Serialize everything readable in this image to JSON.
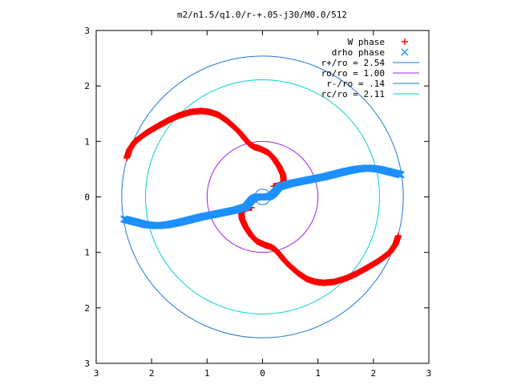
{
  "chart_data": {
    "type": "scatter",
    "title": "m2/n1.5/q1.0/r-+.05-j30/M0.0/512",
    "xlim": [
      -3,
      3
    ],
    "ylim": [
      -3,
      3
    ],
    "x_tick_values": [
      -3,
      -2,
      -1,
      0,
      1,
      2,
      3
    ],
    "x_tick_labels": [
      "3",
      "2",
      "1",
      "0",
      "1",
      "2",
      "3"
    ],
    "y_tick_values": [
      3,
      2,
      1,
      0,
      -1,
      -2,
      -3
    ],
    "y_tick_labels": [
      "3",
      "2",
      "1",
      "0",
      "1",
      "2",
      "3"
    ],
    "grid": false,
    "legend_position": "top-right",
    "series": [
      {
        "name": "W phase",
        "kind": "points",
        "marker": "plus",
        "color": "#ff0000",
        "x": [
          -2.45,
          -2.4,
          -2.3,
          -2.1,
          -1.9,
          -1.7,
          -1.5,
          -1.3,
          -1.1,
          -0.95,
          -0.8,
          -0.65,
          -0.5,
          -0.4,
          -0.32,
          -0.25,
          -0.2,
          -0.15,
          -0.05,
          0.1,
          0.2,
          0.3,
          0.37,
          0.38,
          0.37,
          0.33,
          0.27,
          0.2
        ],
        "y": [
          0.7,
          0.85,
          1.0,
          1.15,
          1.27,
          1.38,
          1.47,
          1.53,
          1.55,
          1.53,
          1.48,
          1.38,
          1.25,
          1.15,
          1.05,
          0.97,
          0.93,
          0.9,
          0.87,
          0.8,
          0.7,
          0.55,
          0.4,
          0.3,
          0.25,
          0.22,
          0.2,
          0.19
        ]
      },
      {
        "name": "W phase",
        "kind": "points",
        "marker": "plus",
        "color": "#ff0000",
        "x": [
          2.45,
          2.4,
          2.3,
          2.1,
          1.9,
          1.7,
          1.5,
          1.3,
          1.1,
          0.95,
          0.8,
          0.65,
          0.5,
          0.4,
          0.32,
          0.25,
          0.2,
          0.15,
          0.05,
          -0.1,
          -0.2,
          -0.3,
          -0.37,
          -0.38,
          -0.37,
          -0.33,
          -0.27,
          -0.2
        ],
        "y": [
          -0.7,
          -0.85,
          -1.0,
          -1.15,
          -1.27,
          -1.38,
          -1.47,
          -1.53,
          -1.55,
          -1.53,
          -1.48,
          -1.38,
          -1.25,
          -1.15,
          -1.05,
          -0.97,
          -0.93,
          -0.9,
          -0.87,
          -0.8,
          -0.7,
          -0.55,
          -0.4,
          -0.3,
          -0.25,
          -0.22,
          -0.2,
          -0.19
        ]
      },
      {
        "name": "drho phase",
        "kind": "points",
        "marker": "cross",
        "color": "#1e90ff",
        "x": [
          -2.5,
          -2.3,
          -2.1,
          -1.9,
          -1.7,
          -1.5,
          -1.3,
          -1.1,
          -0.9,
          -0.7,
          -0.5,
          -0.4,
          -0.3,
          -0.25,
          -0.2,
          -0.15,
          -0.1,
          0.1,
          0.15,
          0.2,
          0.25,
          0.3,
          0.4,
          0.5,
          0.7,
          0.9,
          1.1,
          1.3,
          1.5,
          1.7,
          1.9,
          2.1,
          2.3,
          2.5
        ],
        "y": [
          -0.4,
          -0.45,
          -0.5,
          -0.52,
          -0.5,
          -0.46,
          -0.41,
          -0.36,
          -0.32,
          -0.28,
          -0.24,
          -0.21,
          -0.18,
          -0.12,
          -0.06,
          -0.02,
          0.0,
          0.0,
          0.02,
          0.06,
          0.12,
          0.18,
          0.21,
          0.24,
          0.28,
          0.32,
          0.36,
          0.41,
          0.46,
          0.5,
          0.52,
          0.5,
          0.45,
          0.4
        ]
      },
      {
        "name": "r+/ro = 2.54",
        "kind": "circle",
        "radius": 2.54,
        "color": "#1f77d6"
      },
      {
        "name": "ro/ro = 1.00",
        "kind": "circle",
        "radius": 1.0,
        "color": "#a020f0"
      },
      {
        "name": "r-/ro = .14",
        "kind": "circle",
        "radius": 0.14,
        "color": "#1f77d6"
      },
      {
        "name": "rc/ro = 2.11",
        "kind": "circle",
        "radius": 2.11,
        "color": "#00d0d0"
      }
    ]
  }
}
